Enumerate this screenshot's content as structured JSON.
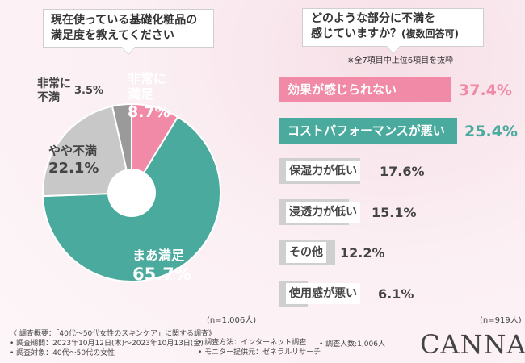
{
  "left_question": {
    "line1": "現在使っている基礎化粧品の",
    "line2": "満足度を教えてください"
  },
  "right_question": {
    "line1": "どのような部分に不満を",
    "line2": "感じていますか？",
    "line2_suffix": "(複数回答可)"
  },
  "note": "※全7項目中上位6項目を抜粋",
  "left_n": "(n=1,006人)",
  "right_n": "(n=919人)",
  "chart_data": [
    {
      "type": "pie",
      "title": "現在使っている基礎化粧品の満足度を教えてください",
      "slices": [
        {
          "label_line1": "非常に",
          "label_line2": "満足",
          "value": 8.7,
          "value_text": "8.7%",
          "color": "#f08aa6"
        },
        {
          "label_line1": "まあ満足",
          "label_line2": "",
          "value": 65.7,
          "value_text": "65.7%",
          "color": "#4aaa9d"
        },
        {
          "label_line1": "やや不満",
          "label_line2": "",
          "value": 22.1,
          "value_text": "22.1%",
          "color": "#c8c8c8"
        },
        {
          "label_line1": "非常に",
          "label_line2": "不満",
          "value": 3.5,
          "value_text": "3.5%",
          "color": "#9a9a9a"
        }
      ]
    },
    {
      "type": "bar",
      "orientation": "horizontal",
      "title": "どのような部分に不満を感じていますか？(複数回答可)",
      "categories": [
        "効果が感じられない",
        "コストパフォーマンスが悪い",
        "保湿力が低い",
        "浸透力が低い",
        "その他",
        "使用感が悪い"
      ],
      "values": [
        37.4,
        25.4,
        17.6,
        15.1,
        12.2,
        6.1
      ],
      "value_texts": [
        "37.4%",
        "25.4%",
        "17.6%",
        "15.1%",
        "12.2%",
        "6.1%"
      ],
      "colors": [
        "#f08aa6",
        "#4aaa9d",
        "#cfcfcf",
        "#cfcfcf",
        "#cfcfcf",
        "#cfcfcf"
      ],
      "value_colors": [
        "#f08aa6",
        "#4aaa9d",
        "#444444",
        "#444444",
        "#444444",
        "#444444"
      ],
      "xlim": [
        0,
        37.4
      ]
    }
  ],
  "footer": {
    "line1": "《 調査概要：「40代～50代女性のスキンケア」に関する調査》",
    "line2": "• 調査期間：2023年10月12日(木)～2023年10月13日(金)",
    "line3": "• 調査対象：40代～50代の女性",
    "method": "• 調査方法：インターネット調査",
    "provider": "• モニター提供元：ゼネラルリサーチ",
    "people": "• 調査人数:1,006人"
  },
  "brand": "CANNA"
}
